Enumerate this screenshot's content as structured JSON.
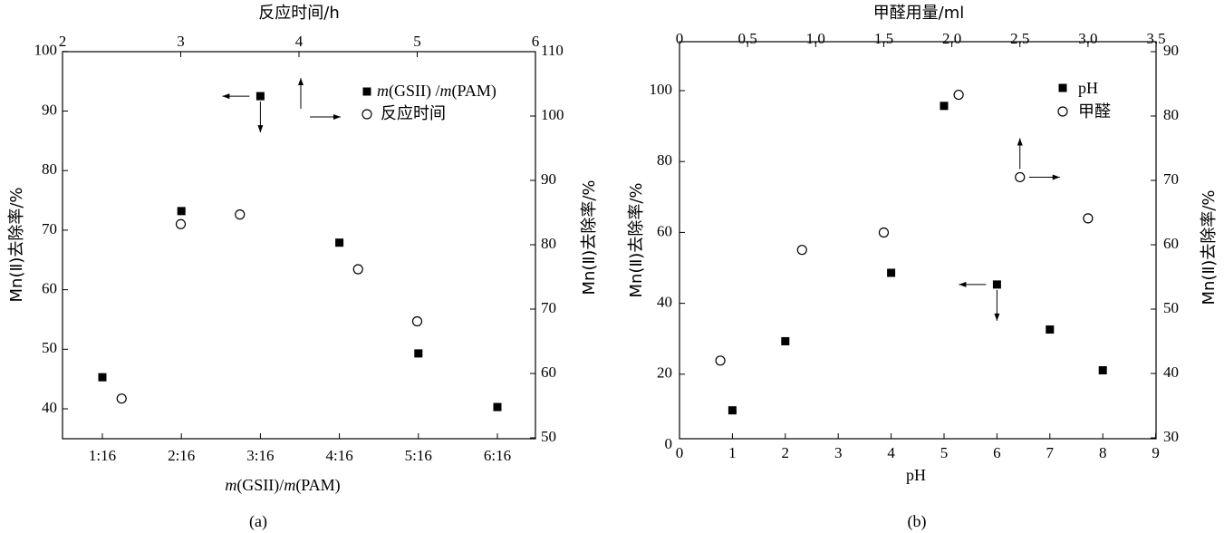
{
  "chart_data": [
    {
      "type": "scatter",
      "panel_label": "(a)",
      "top_axis": {
        "label": "反应时间/h",
        "ticks": [
          2,
          3,
          4,
          5,
          6
        ]
      },
      "bottom_axis": {
        "label_italic": "m",
        "label_parts": [
          "(GSII)/",
          "m",
          "(PAM)"
        ],
        "ticks": [
          "1:16",
          "2:16",
          "3:16",
          "4:16",
          "5:16",
          "6:16"
        ]
      },
      "left_axis": {
        "label": "Mn(Ⅱ)去除率/%",
        "ylim": [
          35,
          100
        ],
        "ticks": [
          40,
          50,
          60,
          70,
          80,
          90,
          100
        ]
      },
      "right_axis": {
        "label": "Mn(Ⅱ)去除率/%",
        "ylim": [
          50,
          110
        ],
        "ticks": [
          50,
          60,
          70,
          80,
          90,
          100,
          110
        ]
      },
      "legend": {
        "position": "top-right",
        "entries": [
          {
            "marker": "square",
            "text_parts": [
              "m",
              "(GSII) /",
              "m",
              "(PAM)"
            ]
          },
          {
            "marker": "circle",
            "text": "反应时间"
          }
        ]
      },
      "series": [
        {
          "marker": "square",
          "axes": "bottom-left",
          "x": [
            "1:16",
            "2:16",
            "3:16",
            "4:16",
            "5:16",
            "6:16"
          ],
          "values": [
            45.3,
            73.2,
            92.5,
            67.9,
            49.3,
            40.3
          ]
        },
        {
          "marker": "circle",
          "axes": "top-right",
          "x": [
            2.5,
            3,
            3.5,
            4.5,
            5
          ],
          "values": [
            56.1,
            83.2,
            84.7,
            76.2,
            68.1
          ]
        }
      ]
    },
    {
      "type": "scatter",
      "panel_label": "(b)",
      "top_axis": {
        "label": "甲醛用量/ml",
        "ticks": [
          "0",
          "0.5",
          "1.0",
          "1.5",
          "2.0",
          "2.5",
          "3.0",
          "3.5"
        ]
      },
      "bottom_axis": {
        "label": "pH",
        "ticks": [
          0,
          1,
          2,
          3,
          4,
          5,
          6,
          7,
          8,
          9
        ]
      },
      "left_axis": {
        "label": "Mn(Ⅱ)去除率/%",
        "ylim": [
          0,
          110
        ],
        "ticks": [
          0,
          20,
          40,
          60,
          80,
          100
        ]
      },
      "right_axis": {
        "label": "Mn(Ⅱ)去除率/%",
        "ylim": [
          30,
          90
        ],
        "ticks": [
          30,
          40,
          50,
          60,
          70,
          80,
          90
        ]
      },
      "legend": {
        "position": "top-right",
        "entries": [
          {
            "marker": "square",
            "text": "pH"
          },
          {
            "marker": "circle",
            "text": "甲醛"
          }
        ]
      },
      "series": [
        {
          "name": "pH",
          "marker": "square",
          "axes": "bottom-left",
          "x": [
            1,
            2,
            4,
            5,
            6,
            7,
            8
          ],
          "values": [
            9.8,
            29.3,
            48.6,
            95.7,
            45.3,
            32.6,
            21.1
          ]
        },
        {
          "name": "甲醛",
          "marker": "circle",
          "axes": "top-right",
          "x": [
            0.3,
            0.9,
            1.5,
            2.05,
            2.5,
            3.0
          ],
          "values": [
            42.0,
            59.2,
            61.9,
            83.3,
            70.5,
            64.1
          ]
        }
      ]
    }
  ]
}
